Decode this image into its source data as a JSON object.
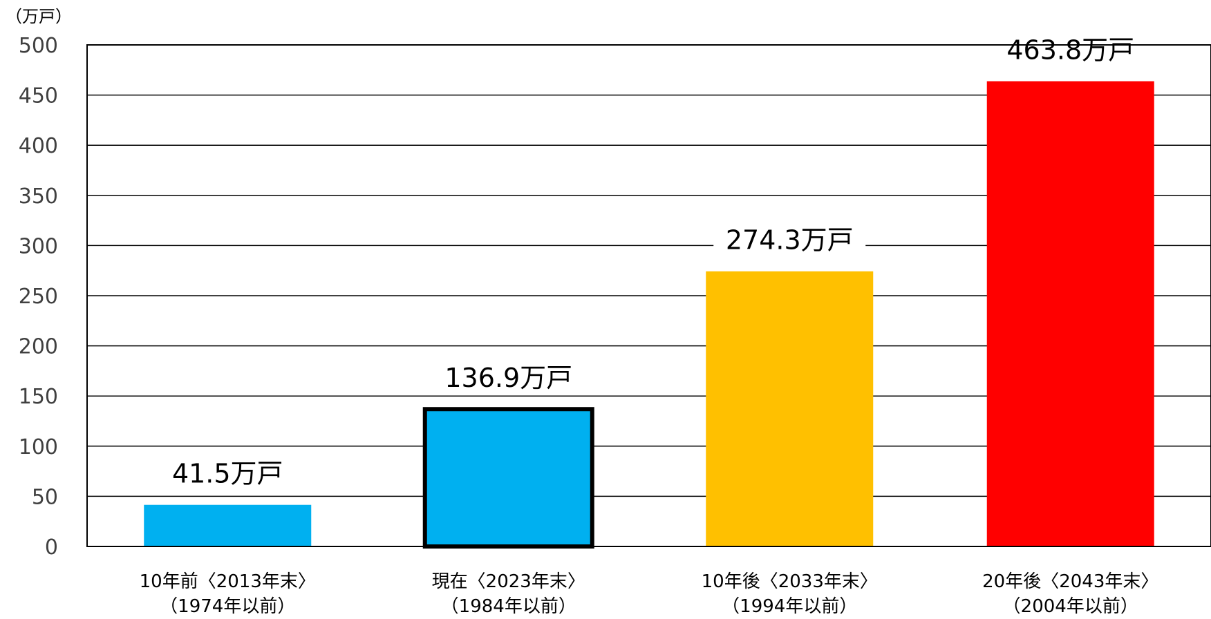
{
  "chart_data": {
    "type": "bar",
    "y_unit": "（万戸）",
    "ylim": [
      0,
      500
    ],
    "y_ticks": [
      0,
      50,
      100,
      150,
      200,
      250,
      300,
      350,
      400,
      450,
      500
    ],
    "grid": true,
    "legend": "none",
    "categories": [
      {
        "line1": "10年前〈2013年末〉",
        "line2": "（1974年以前）"
      },
      {
        "line1": "現在〈2023年末〉",
        "line2": "（1984年以前）"
      },
      {
        "line1": "10年後〈2033年末〉",
        "line2": "（1994年以前）"
      },
      {
        "line1": "20年後〈2043年末〉",
        "line2": "（2004年以前）"
      }
    ],
    "values": [
      41.5,
      136.9,
      274.3,
      463.8
    ],
    "data_labels": [
      "41.5万戸",
      "136.9万戸",
      "274.3万戸",
      "463.8万戸"
    ],
    "colors": [
      "#00B0F0",
      "#00B0F0",
      "#FFC000",
      "#FF0000"
    ],
    "highlight_index": 1
  }
}
